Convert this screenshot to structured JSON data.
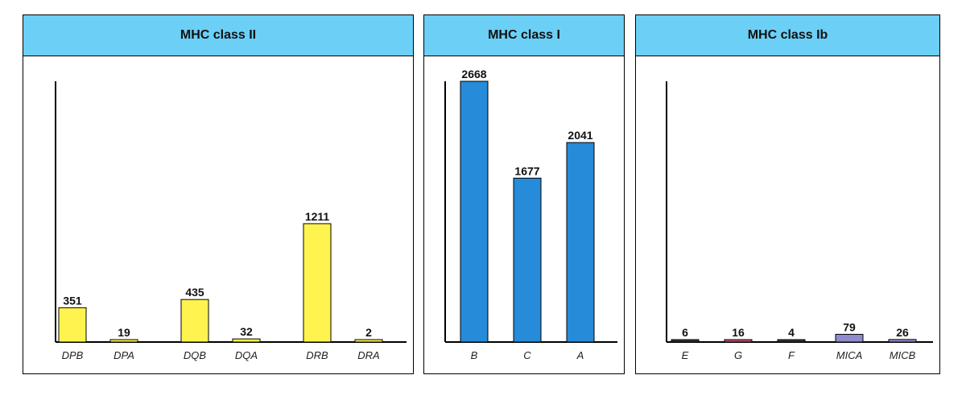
{
  "chart_data": [
    {
      "type": "bar",
      "title": "MHC class II",
      "categories": [
        "DPB",
        "DPA",
        "DQB",
        "DQA",
        "DRB",
        "DRA"
      ],
      "values": [
        351,
        19,
        435,
        32,
        1211,
        2
      ],
      "ylim": [
        0,
        2668
      ],
      "color": "#fff44f"
    },
    {
      "type": "bar",
      "title": "MHC class I",
      "categories": [
        "B",
        "C",
        "A"
      ],
      "values": [
        2668,
        1677,
        2041
      ],
      "ylim": [
        0,
        2668
      ],
      "color": "#268bd8"
    },
    {
      "type": "bar",
      "title": "MHC class Ib",
      "categories": [
        "E",
        "G",
        "F",
        "MICA",
        "MICB"
      ],
      "values": [
        6,
        16,
        4,
        79,
        26
      ],
      "ylim": [
        0,
        2668
      ],
      "colors": [
        "#333333",
        "#c0506a",
        "#333333",
        "#8e8ccc",
        "#8e8ccc"
      ]
    }
  ]
}
